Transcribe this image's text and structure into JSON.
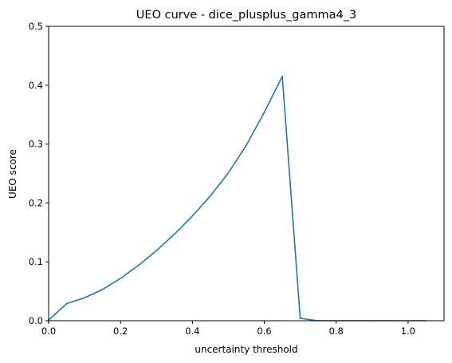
{
  "chart_data": {
    "type": "line",
    "title": "UEO curve - dice_plusplus_gamma4_3",
    "xlabel": "uncertainty threshold",
    "ylabel": "UEO score",
    "xlim": [
      0.0,
      1.1
    ],
    "ylim": [
      0.0,
      0.5
    ],
    "xticks": [
      0.0,
      0.2,
      0.4,
      0.6,
      0.8,
      1.0
    ],
    "xtick_labels": [
      "0.0",
      "0.2",
      "0.4",
      "0.6",
      "0.8",
      "1.0"
    ],
    "yticks": [
      0.0,
      0.1,
      0.2,
      0.3,
      0.4,
      0.5
    ],
    "ytick_labels": [
      "0.0",
      "0.1",
      "0.2",
      "0.3",
      "0.4",
      "0.5"
    ],
    "grid": false,
    "line_color": "#1f77b4",
    "series": [
      {
        "x": [
          0.0,
          0.05,
          0.1,
          0.15,
          0.2,
          0.25,
          0.3,
          0.35,
          0.4,
          0.45,
          0.5,
          0.55,
          0.6,
          0.65,
          0.7,
          0.75,
          0.8,
          0.85,
          0.9,
          0.95,
          1.0,
          1.05
        ],
        "y": [
          0.001,
          0.029,
          0.039,
          0.053,
          0.072,
          0.094,
          0.119,
          0.147,
          0.178,
          0.212,
          0.251,
          0.298,
          0.354,
          0.415,
          0.004,
          0.0,
          0.0,
          0.0,
          0.0,
          0.0,
          0.0,
          0.0
        ]
      }
    ]
  }
}
